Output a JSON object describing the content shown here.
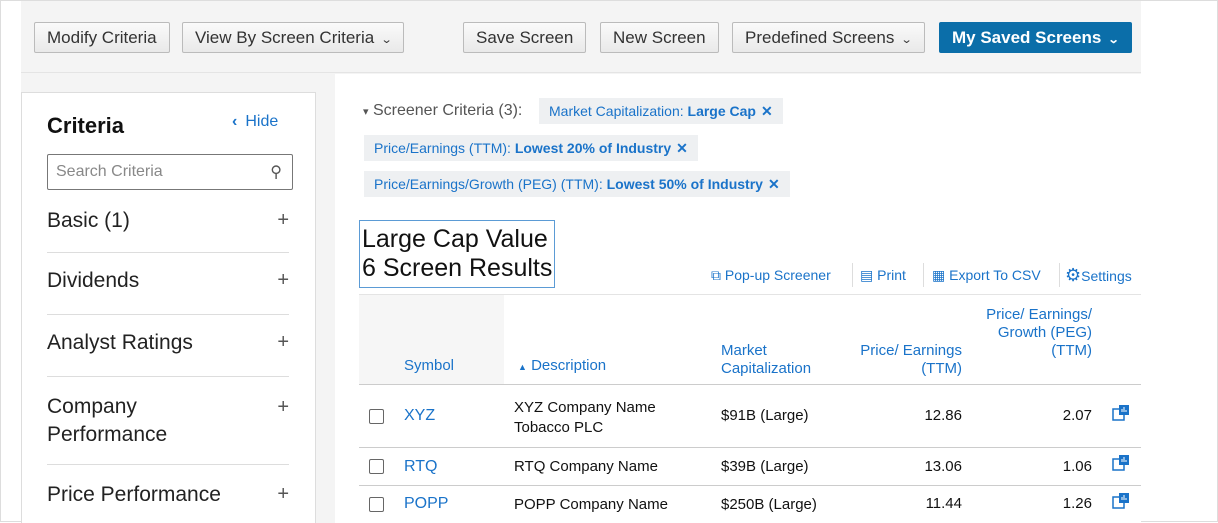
{
  "toolbar": {
    "modify": "Modify Criteria",
    "view_by": "View By Screen Criteria",
    "save": "Save Screen",
    "new": "New Screen",
    "predefined": "Predefined Screens",
    "saved": "My Saved Screens"
  },
  "sidebar": {
    "title": "Criteria",
    "hide": "Hide",
    "search_placeholder": "Search Criteria",
    "items": [
      {
        "label": "Basic (1)"
      },
      {
        "label": "Dividends"
      },
      {
        "label": "Analyst Ratings"
      },
      {
        "label": "Company Performance"
      },
      {
        "label": "Price Performance"
      }
    ]
  },
  "criteria": {
    "label": "Screener Criteria (3):",
    "chips": [
      {
        "name": "Market Capitalization:",
        "value": "Large Cap"
      },
      {
        "name": "Price/Earnings (TTM):",
        "value": "Lowest 20% of Industry"
      },
      {
        "name": "Price/Earnings/Growth (PEG) (TTM):",
        "value": "Lowest 50% of Industry"
      }
    ]
  },
  "results": {
    "title": "Large Cap Value",
    "count": "6 Screen Results"
  },
  "tools": {
    "popup": "Pop-up Screener",
    "print": "Print",
    "export": "Export To CSV",
    "settings": "Settings"
  },
  "table": {
    "headers": {
      "symbol": "Symbol",
      "description": "Description",
      "market_cap": "Market Capitalization",
      "pe": "Price/ Earnings (TTM)",
      "peg": "Price/ Earnings/ Growth (PEG) (TTM)"
    },
    "sort": {
      "column": "description",
      "direction": "ascending"
    },
    "rows": [
      {
        "symbol": "XYZ",
        "description": "XYZ Company Name Tobacco PLC",
        "market_cap": "$91B (Large)",
        "pe": "12.86",
        "peg": "2.07"
      },
      {
        "symbol": "RTQ",
        "description": "RTQ Company Name",
        "market_cap": "$39B (Large)",
        "pe": "13.06",
        "peg": "1.06"
      },
      {
        "symbol": "POPP",
        "description": "POPP Company Name",
        "market_cap": "$250B (Large)",
        "pe": "11.44",
        "peg": "1.26"
      }
    ]
  },
  "colors": {
    "accent": "#1a73c9",
    "primary_button": "#0b6ea9"
  }
}
